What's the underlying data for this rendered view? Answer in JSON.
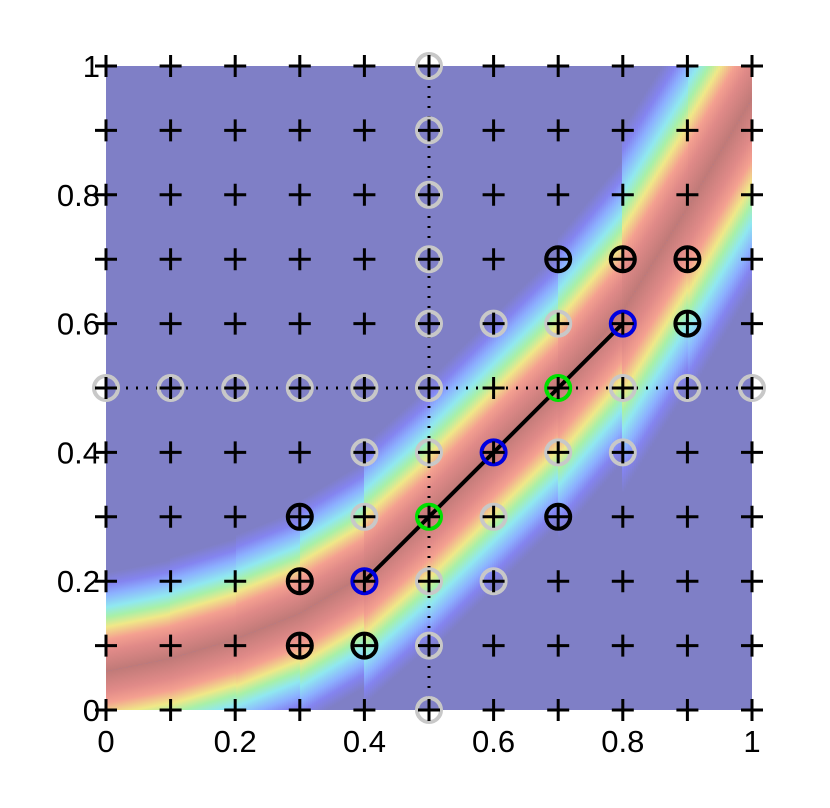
{
  "chart_data": {
    "type": "scatter",
    "xlim": [
      0,
      1
    ],
    "ylim": [
      0,
      1
    ],
    "xticks": [
      0,
      0.2,
      0.4,
      0.6,
      0.8,
      1
    ],
    "yticks": [
      0,
      0.2,
      0.4,
      0.6,
      0.8,
      1
    ],
    "background_color": "#7f7fc6",
    "background_curve": {
      "x": [
        0,
        0.1,
        0.2,
        0.3,
        0.4,
        0.5,
        0.6,
        0.7,
        0.8,
        0.9,
        1
      ],
      "y": [
        0.06,
        0.08,
        0.11,
        0.15,
        0.21,
        0.3,
        0.4,
        0.5,
        0.62,
        0.78,
        0.95
      ]
    },
    "grid_points": {
      "color": "#000000",
      "x": [
        0,
        0.1,
        0.2,
        0.3,
        0.4,
        0.5,
        0.6,
        0.7,
        0.8,
        0.9,
        1
      ],
      "y": [
        0,
        0.1,
        0.2,
        0.3,
        0.4,
        0.5,
        0.6,
        0.7,
        0.8,
        0.9,
        1
      ]
    },
    "reference_lines": {
      "x": [
        0.5
      ],
      "y": [
        0.5
      ]
    },
    "line": {
      "color": "#000000",
      "x": [
        0.4,
        0.5,
        0.6,
        0.7,
        0.8
      ],
      "y": [
        0.2,
        0.3,
        0.4,
        0.5,
        0.6
      ]
    },
    "series": [
      {
        "color": "#c8c8c8",
        "x": [
          0.5,
          0.5,
          0.5,
          0.5,
          0.5,
          0.6,
          0.7,
          0,
          0.1,
          0.2,
          0.3,
          0.4,
          0.5,
          0.8,
          0.9,
          1,
          0.4,
          0.5,
          0.7,
          0.8,
          0.4,
          0.6,
          0.5,
          0.6,
          0.5,
          0.5
        ],
        "y": [
          1,
          0.9,
          0.8,
          0.7,
          0.6,
          0.6,
          0.6,
          0.5,
          0.5,
          0.5,
          0.5,
          0.5,
          0.5,
          0.5,
          0.5,
          0.5,
          0.4,
          0.4,
          0.4,
          0.4,
          0.3,
          0.3,
          0.2,
          0.2,
          0.1,
          0
        ]
      },
      {
        "color": "#000000",
        "x": [
          0.7,
          0.8,
          0.9,
          0.9,
          0.3,
          0.7,
          0.3,
          0.3,
          0.4
        ],
        "y": [
          0.7,
          0.7,
          0.7,
          0.6,
          0.3,
          0.3,
          0.2,
          0.1,
          0.1
        ]
      },
      {
        "color": "#0000e0",
        "x": [
          0.4,
          0.6,
          0.8
        ],
        "y": [
          0.2,
          0.4,
          0.6
        ]
      },
      {
        "color": "#00e000",
        "x": [
          0.5,
          0.7
        ],
        "y": [
          0.3,
          0.5
        ]
      }
    ]
  }
}
